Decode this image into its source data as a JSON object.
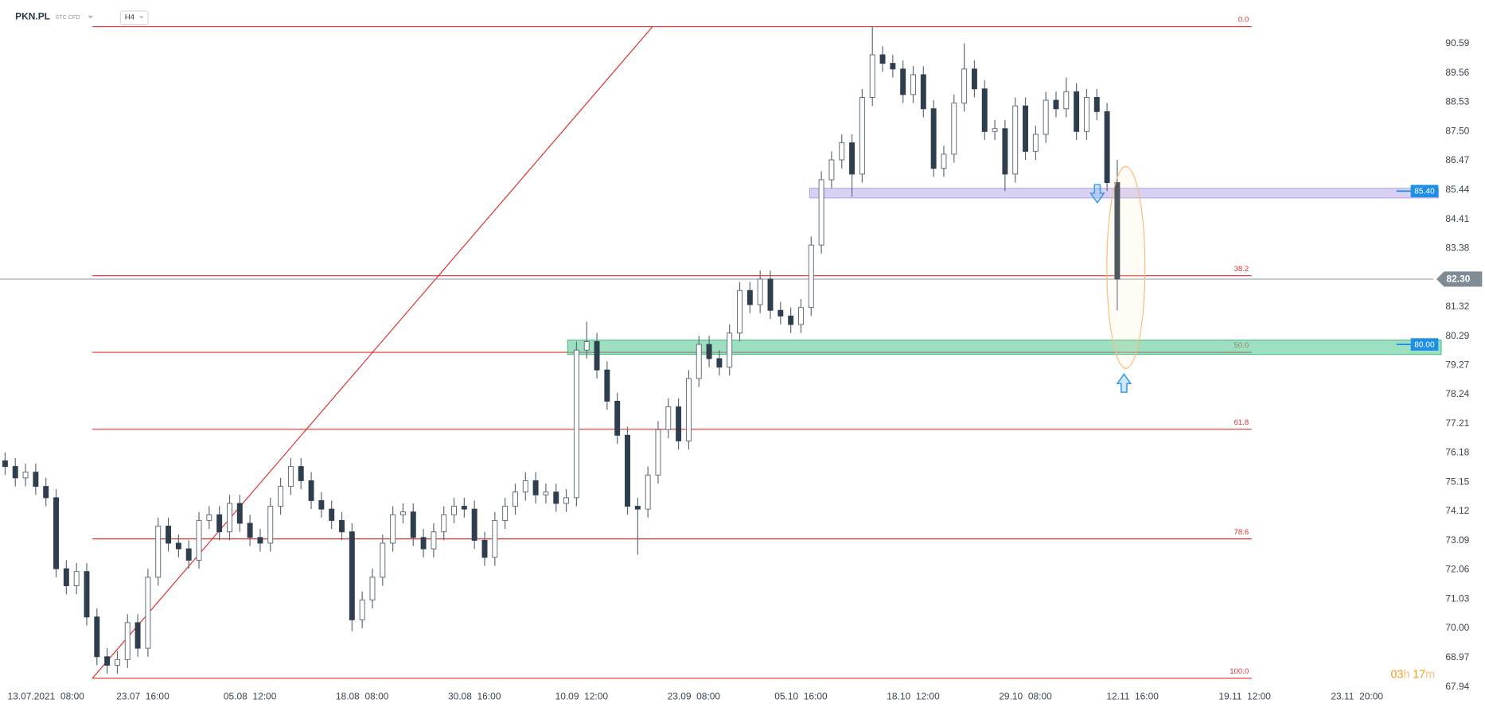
{
  "header": {
    "symbol": "PKN.PL",
    "market": "STC CFD",
    "interval": "H4"
  },
  "chart_data": {
    "type": "candlestick",
    "colors": {
      "up": "#ffffff",
      "down": "#2f3e4e",
      "wick": "#5d6b78"
    },
    "ohlc": [
      [
        75.9,
        76.2,
        75.4,
        75.7
      ],
      [
        75.7,
        76.0,
        75.0,
        75.3
      ],
      [
        75.3,
        75.8,
        75.0,
        75.5
      ],
      [
        75.5,
        75.8,
        74.7,
        75.0
      ],
      [
        75.0,
        75.3,
        74.3,
        74.6
      ],
      [
        74.6,
        74.9,
        71.8,
        72.1
      ],
      [
        72.1,
        72.4,
        71.2,
        71.5
      ],
      [
        71.5,
        72.3,
        71.2,
        72.0
      ],
      [
        72.0,
        72.3,
        70.1,
        70.4
      ],
      [
        70.4,
        70.7,
        68.7,
        69.0
      ],
      [
        69.0,
        69.3,
        68.4,
        68.7
      ],
      [
        68.7,
        69.2,
        68.4,
        68.9
      ],
      [
        68.9,
        70.5,
        68.6,
        70.2
      ],
      [
        70.2,
        70.5,
        69.0,
        69.3
      ],
      [
        69.3,
        72.1,
        69.0,
        71.8
      ],
      [
        71.8,
        73.9,
        71.5,
        73.6
      ],
      [
        73.6,
        73.9,
        72.7,
        73.0
      ],
      [
        73.0,
        73.3,
        72.5,
        72.8
      ],
      [
        72.8,
        73.1,
        72.1,
        72.4
      ],
      [
        72.4,
        74.1,
        72.1,
        73.8
      ],
      [
        73.8,
        74.3,
        73.5,
        74.0
      ],
      [
        74.0,
        74.3,
        73.1,
        73.4
      ],
      [
        73.4,
        74.7,
        73.1,
        74.4
      ],
      [
        74.4,
        74.7,
        73.4,
        73.7
      ],
      [
        73.7,
        74.0,
        72.9,
        73.2
      ],
      [
        73.2,
        73.5,
        72.7,
        73.0
      ],
      [
        73.0,
        74.6,
        72.7,
        74.3
      ],
      [
        74.3,
        75.3,
        74.0,
        75.0
      ],
      [
        75.0,
        76.0,
        74.7,
        75.7
      ],
      [
        75.7,
        76.0,
        74.9,
        75.2
      ],
      [
        75.2,
        75.5,
        74.2,
        74.5
      ],
      [
        74.5,
        74.8,
        73.9,
        74.2
      ],
      [
        74.2,
        74.5,
        73.5,
        73.8
      ],
      [
        73.8,
        74.1,
        73.1,
        73.4
      ],
      [
        73.4,
        73.7,
        69.9,
        70.3
      ],
      [
        70.3,
        71.3,
        70.0,
        71.0
      ],
      [
        71.0,
        72.1,
        70.7,
        71.8
      ],
      [
        71.8,
        73.3,
        71.5,
        73.0
      ],
      [
        73.0,
        74.3,
        72.7,
        74.0
      ],
      [
        74.0,
        74.4,
        73.7,
        74.1
      ],
      [
        74.1,
        74.4,
        72.9,
        73.2
      ],
      [
        73.2,
        73.5,
        72.5,
        72.8
      ],
      [
        72.8,
        73.7,
        72.5,
        73.4
      ],
      [
        73.4,
        74.3,
        73.1,
        74.0
      ],
      [
        74.0,
        74.6,
        73.7,
        74.3
      ],
      [
        74.3,
        74.6,
        73.9,
        74.2
      ],
      [
        74.2,
        74.5,
        72.8,
        73.1
      ],
      [
        73.1,
        73.4,
        72.2,
        72.5
      ],
      [
        72.5,
        74.1,
        72.2,
        73.8
      ],
      [
        73.8,
        74.6,
        73.5,
        74.3
      ],
      [
        74.3,
        75.1,
        74.0,
        74.8
      ],
      [
        74.8,
        75.5,
        74.5,
        75.2
      ],
      [
        75.2,
        75.5,
        74.4,
        74.7
      ],
      [
        74.7,
        75.1,
        74.4,
        74.8
      ],
      [
        74.8,
        75.1,
        74.1,
        74.4
      ],
      [
        74.4,
        74.9,
        74.1,
        74.6
      ],
      [
        74.6,
        80.1,
        74.3,
        79.8
      ],
      [
        79.8,
        80.8,
        79.5,
        80.1
      ],
      [
        80.1,
        80.4,
        78.8,
        79.1
      ],
      [
        79.1,
        79.4,
        77.7,
        78.0
      ],
      [
        78.0,
        78.3,
        76.5,
        76.8
      ],
      [
        76.8,
        77.1,
        74.0,
        74.3
      ],
      [
        74.3,
        74.6,
        72.6,
        74.2
      ],
      [
        74.2,
        75.7,
        73.9,
        75.4
      ],
      [
        75.4,
        77.3,
        75.1,
        77.0
      ],
      [
        77.0,
        78.1,
        76.7,
        77.8
      ],
      [
        77.8,
        78.1,
        76.3,
        76.6
      ],
      [
        76.6,
        79.1,
        76.3,
        78.8
      ],
      [
        78.8,
        80.3,
        78.5,
        80.0
      ],
      [
        80.0,
        80.3,
        79.2,
        79.5
      ],
      [
        79.5,
        79.8,
        78.9,
        79.2
      ],
      [
        79.2,
        80.7,
        78.9,
        80.4
      ],
      [
        80.4,
        82.2,
        80.1,
        81.9
      ],
      [
        81.9,
        82.2,
        81.1,
        81.4
      ],
      [
        81.4,
        82.6,
        81.1,
        82.3
      ],
      [
        82.3,
        82.6,
        80.9,
        81.2
      ],
      [
        81.2,
        81.5,
        80.7,
        81.0
      ],
      [
        81.0,
        81.3,
        80.4,
        80.7
      ],
      [
        80.7,
        81.6,
        80.4,
        81.3
      ],
      [
        81.3,
        83.8,
        81.0,
        83.5
      ],
      [
        83.5,
        86.1,
        83.2,
        85.8
      ],
      [
        85.8,
        86.8,
        85.5,
        86.5
      ],
      [
        86.5,
        87.4,
        86.2,
        87.1
      ],
      [
        87.1,
        87.4,
        85.2,
        86.0
      ],
      [
        86.0,
        89.0,
        85.7,
        88.7
      ],
      [
        88.7,
        91.2,
        88.4,
        90.2
      ],
      [
        90.2,
        90.5,
        89.6,
        89.9
      ],
      [
        89.9,
        90.2,
        89.4,
        89.7
      ],
      [
        89.7,
        90.0,
        88.5,
        88.8
      ],
      [
        88.8,
        89.8,
        88.5,
        89.5
      ],
      [
        89.5,
        89.8,
        88.0,
        88.3
      ],
      [
        88.3,
        88.6,
        85.9,
        86.2
      ],
      [
        86.2,
        87.0,
        85.9,
        86.7
      ],
      [
        86.7,
        88.8,
        86.4,
        88.5
      ],
      [
        88.5,
        90.6,
        88.2,
        89.7
      ],
      [
        89.7,
        90.0,
        88.7,
        89.0
      ],
      [
        89.0,
        89.3,
        87.2,
        87.5
      ],
      [
        87.5,
        87.9,
        87.2,
        87.6
      ],
      [
        87.6,
        87.9,
        85.4,
        86.0
      ],
      [
        86.0,
        88.7,
        85.7,
        88.4
      ],
      [
        88.4,
        88.7,
        86.5,
        86.8
      ],
      [
        86.8,
        87.7,
        86.5,
        87.4
      ],
      [
        87.4,
        88.9,
        87.1,
        88.6
      ],
      [
        88.6,
        88.9,
        88.0,
        88.3
      ],
      [
        88.3,
        89.4,
        88.0,
        88.9
      ],
      [
        88.9,
        89.2,
        87.2,
        87.5
      ],
      [
        87.5,
        89.0,
        87.2,
        88.7
      ],
      [
        88.7,
        89.0,
        87.9,
        88.2
      ],
      [
        88.2,
        88.5,
        85.4,
        85.7
      ],
      [
        85.7,
        86.5,
        81.2,
        82.3
      ]
    ],
    "xlim": [
      -0.5,
      140
    ],
    "xticks": [
      {
        "value": 4,
        "label": "13.07.2021  08:00"
      },
      {
        "value": 13.5,
        "label": "23.07  16:00"
      },
      {
        "value": 24,
        "label": "05.08  12:00"
      },
      {
        "value": 35,
        "label": "18.08  08:00"
      },
      {
        "value": 46,
        "label": "30.08  16:00"
      },
      {
        "value": 56.5,
        "label": "10.09  12:00"
      },
      {
        "value": 67.5,
        "label": "23.09  08:00"
      },
      {
        "value": 78,
        "label": "05.10  16:00"
      },
      {
        "value": 89,
        "label": "18.10  12:00"
      },
      {
        "value": 100,
        "label": "29.10  08:00"
      },
      {
        "value": 110.5,
        "label": "12.11  16:00"
      },
      {
        "value": 121.5,
        "label": "19.11  12:00"
      },
      {
        "value": 132.5,
        "label": "23.11  20:00"
      }
    ],
    "ylim": [
      67.23,
      92.13
    ],
    "yticks": [
      90.59,
      89.56,
      88.53,
      {
        "value": 87.5,
        "label": "87.50"
      },
      86.47,
      85.44,
      84.41,
      83.38,
      81.32,
      80.29,
      79.27,
      78.24,
      77.21,
      76.18,
      75.15,
      74.12,
      73.09,
      72.06,
      71.03,
      {
        "value": 70,
        "label": "70.00"
      },
      68.97,
      67.94
    ],
    "current_price": {
      "value": 82.3,
      "label": "82.30"
    },
    "fibonacci": [
      {
        "level": {
          "value": 0,
          "label": "0.0"
        },
        "price": 91.19
      },
      {
        "level": 38.2,
        "price": 82.42
      },
      {
        "level": {
          "value": 50,
          "label": "50.0"
        },
        "price": 79.72
      },
      {
        "level": 61.8,
        "price": 77.01
      },
      {
        "level": 78.6,
        "price": 73.15
      },
      {
        "level": {
          "value": 100,
          "label": "100.0"
        },
        "price": 68.24
      }
    ],
    "fib_color": "#e0312f",
    "zones": [
      {
        "price": {
          "value": 85.4,
          "label": "85.40"
        },
        "top": 85.5,
        "bottom": 85.16,
        "color": "#b9acea"
      },
      {
        "price": {
          "value": 80,
          "label": "80.00"
        },
        "top": 80.15,
        "bottom": 79.65,
        "color": "#4fc58e"
      }
    ],
    "countdown": {
      "hours": "03",
      "hours_unit": "h",
      "minutes": "17",
      "minutes_unit": "m"
    }
  }
}
